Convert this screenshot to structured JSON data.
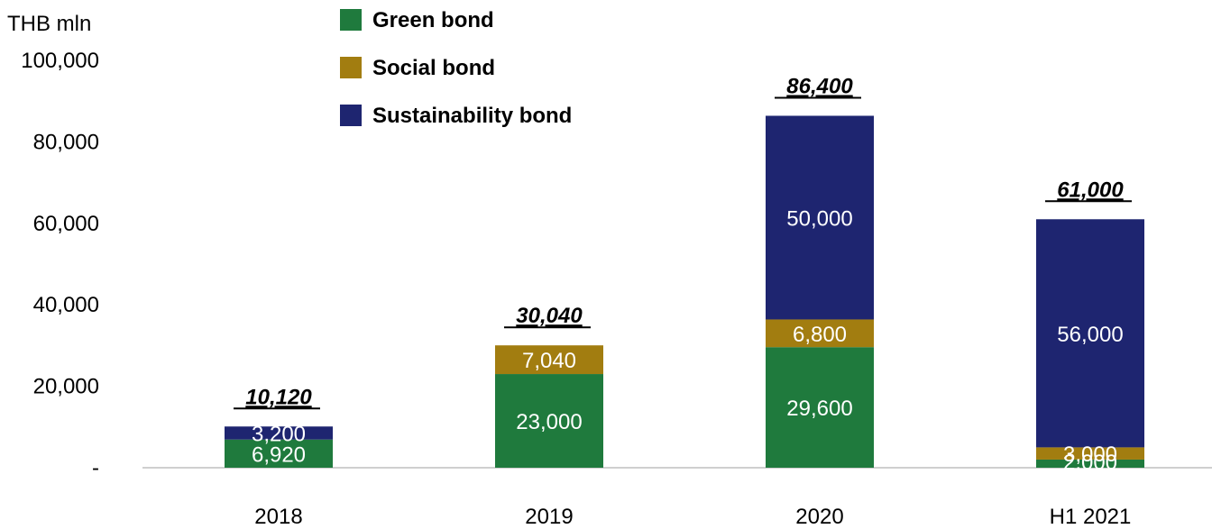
{
  "chart_data": {
    "type": "bar",
    "stacked": true,
    "unit_label": "THB mln",
    "categories": [
      "2018",
      "2019",
      "2020",
      "H1 2021"
    ],
    "series": [
      {
        "name": "Green bond",
        "color": "#1f7a3d",
        "values": [
          6920,
          23000,
          29600,
          2000
        ],
        "labels": [
          "6,920",
          "23,000",
          "29,600",
          "2,000"
        ]
      },
      {
        "name": "Social bond",
        "color": "#a27d10",
        "values": [
          0,
          7040,
          6800,
          3000
        ],
        "labels": [
          "",
          "7,040",
          "6,800",
          "3,000"
        ]
      },
      {
        "name": "Sustainability bond",
        "color": "#1e2570",
        "values": [
          3200,
          0,
          50000,
          56000
        ],
        "labels": [
          "3,200",
          "",
          "50,000",
          "56,000"
        ]
      }
    ],
    "totals": [
      "10,120",
      "30,040",
      "86,400",
      "61,000"
    ],
    "yticks": [
      "-",
      "20,000",
      "40,000",
      "60,000",
      "80,000",
      "100,000"
    ],
    "ytick_values": [
      0,
      20000,
      40000,
      60000,
      80000,
      100000
    ],
    "ylim": [
      0,
      100000
    ],
    "legend_position": "top-left",
    "grid": false
  }
}
